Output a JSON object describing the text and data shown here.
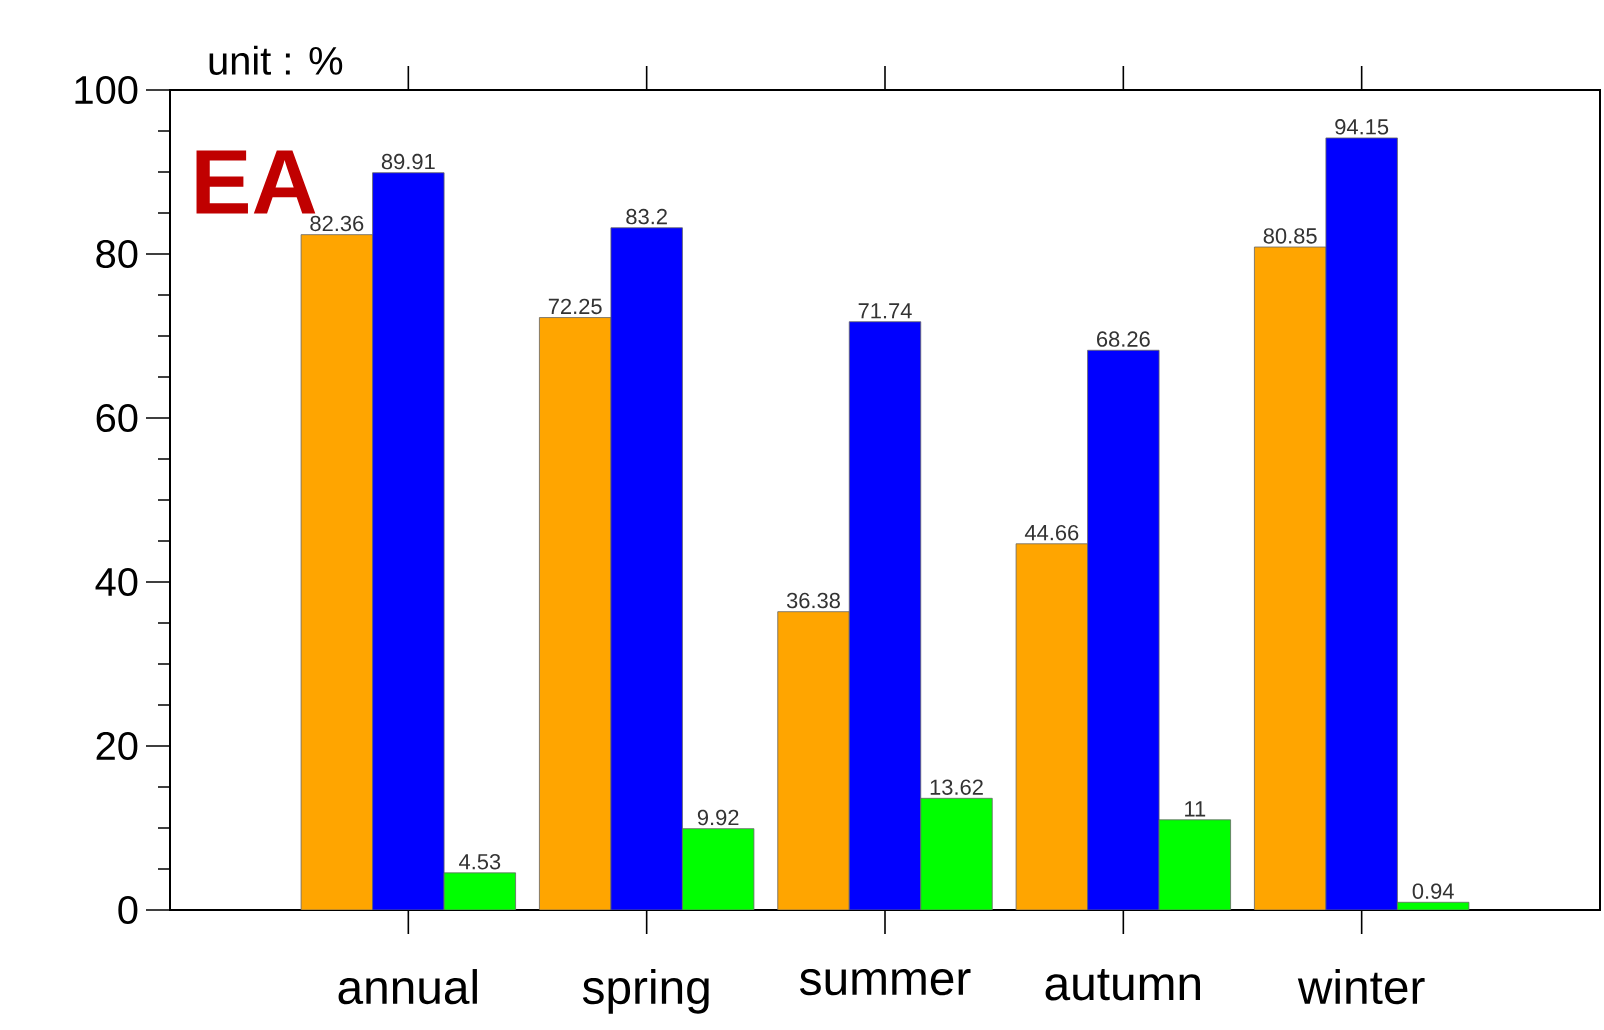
{
  "chart_data": {
    "type": "bar",
    "title": "EA",
    "ylabel": "unit : %",
    "categories": [
      "annual",
      "spring",
      "summer",
      "autumn",
      "winter"
    ],
    "series": [
      {
        "color": "#ffa500",
        "values": [
          82.36,
          72.25,
          36.38,
          44.66,
          80.85
        ]
      },
      {
        "color": "#0000ff",
        "values": [
          89.91,
          83.2,
          71.74,
          68.26,
          94.15
        ]
      },
      {
        "color": "#00ff00",
        "values": [
          4.53,
          9.92,
          13.62,
          11,
          0.94
        ]
      }
    ],
    "ylim": [
      0,
      100
    ],
    "yticks": [
      0,
      20,
      40,
      60,
      80,
      100
    ],
    "data_labels": true,
    "grid": false,
    "legend": false
  }
}
